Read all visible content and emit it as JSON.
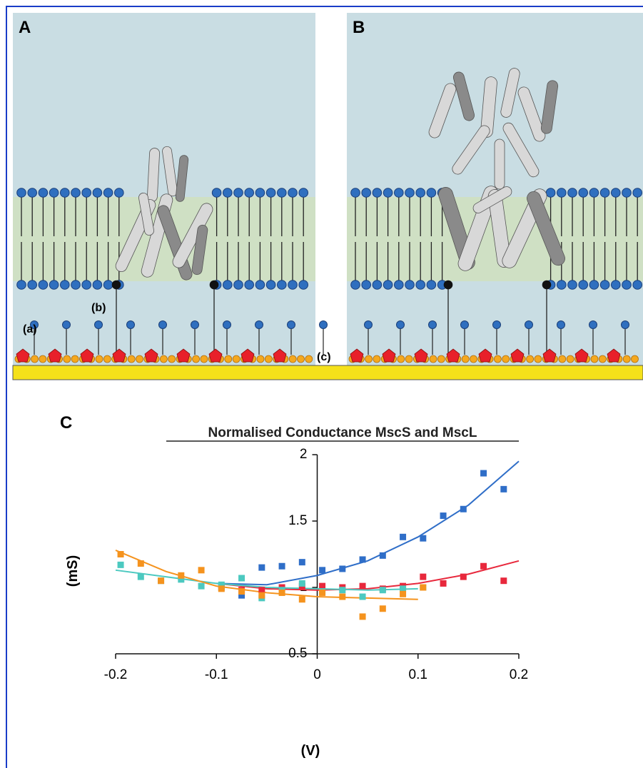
{
  "panels": {
    "a": {
      "label": "A"
    },
    "b": {
      "label": "B"
    },
    "c": {
      "label": "C"
    },
    "annotations": [
      "(a)",
      "(b)",
      "(c)"
    ]
  },
  "chart_data": {
    "type": "scatter",
    "title": "Normalised Conductance MscS and MscL",
    "x_label": "(V)",
    "y_label": "(mS)",
    "xlim": [
      -0.2,
      0.2
    ],
    "xticks": [
      -0.2,
      -0.1,
      0,
      0.1,
      0.2
    ],
    "ylim": [
      0.5,
      2
    ],
    "yticks": [
      0.5,
      1,
      1.5,
      2
    ],
    "series": [
      {
        "color": "#2f6ec8",
        "x": [
          -0.095,
          -0.075,
          -0.055,
          -0.035,
          -0.015,
          0.005,
          0.025,
          0.045,
          0.065,
          0.085,
          0.105,
          0.125,
          0.145,
          0.165,
          0.185
        ],
        "values": [
          1.0,
          0.94,
          1.15,
          1.16,
          1.19,
          1.13,
          1.14,
          1.21,
          1.24,
          1.38,
          1.37,
          1.54,
          1.59,
          1.86,
          1.74
        ]
      },
      {
        "color": "#e8283c",
        "x": [
          -0.075,
          -0.055,
          -0.035,
          -0.015,
          0.005,
          0.025,
          0.045,
          0.065,
          0.085,
          0.105,
          0.125,
          0.145,
          0.165,
          0.185
        ],
        "values": [
          0.98,
          0.98,
          1.0,
          1.01,
          1.01,
          1.0,
          1.01,
          0.99,
          1.01,
          1.08,
          1.03,
          1.08,
          1.16,
          1.05
        ]
      },
      {
        "color": "#4cc9c0",
        "x": [
          -0.195,
          -0.175,
          -0.155,
          -0.135,
          -0.115,
          -0.095,
          -0.075,
          -0.055,
          -0.035,
          -0.015,
          0.005,
          0.025,
          0.045,
          0.065,
          0.085,
          0.105
        ],
        "values": [
          1.17,
          1.08,
          1.05,
          1.06,
          1.01,
          1.02,
          1.07,
          0.92,
          0.98,
          1.03,
          0.97,
          0.98,
          0.93,
          0.98,
          0.99,
          1.0
        ]
      },
      {
        "color": "#f5931e",
        "x": [
          -0.195,
          -0.175,
          -0.155,
          -0.135,
          -0.115,
          -0.095,
          -0.075,
          -0.055,
          -0.035,
          -0.015,
          0.005,
          0.025,
          0.045,
          0.065,
          0.085,
          0.105
        ],
        "values": [
          1.25,
          1.18,
          1.05,
          1.09,
          1.13,
          0.99,
          0.97,
          0.94,
          0.96,
          0.91,
          0.96,
          0.93,
          0.78,
          0.84,
          0.95,
          1.0
        ]
      }
    ],
    "fit_lines": [
      {
        "color": "#2f6ec8",
        "x": [
          -0.1,
          -0.05,
          0,
          0.05,
          0.1,
          0.15,
          0.2
        ],
        "values": [
          1.03,
          1.02,
          1.09,
          1.2,
          1.38,
          1.62,
          1.95
        ]
      },
      {
        "color": "#e8283c",
        "x": [
          -0.1,
          -0.05,
          0,
          0.05,
          0.1,
          0.15,
          0.2
        ],
        "values": [
          1.03,
          0.99,
          0.98,
          0.99,
          1.03,
          1.1,
          1.2
        ]
      },
      {
        "color": "#4cc9c0",
        "x": [
          -0.2,
          -0.15,
          -0.1,
          -0.05,
          0,
          0.05,
          0.1
        ],
        "values": [
          1.13,
          1.08,
          1.03,
          1.0,
          0.99,
          0.98,
          0.99
        ]
      },
      {
        "color": "#f5931e",
        "x": [
          -0.2,
          -0.15,
          -0.1,
          -0.05,
          0,
          0.05,
          0.1
        ],
        "values": [
          1.28,
          1.12,
          1.01,
          0.96,
          0.93,
          0.92,
          0.91
        ]
      }
    ]
  }
}
